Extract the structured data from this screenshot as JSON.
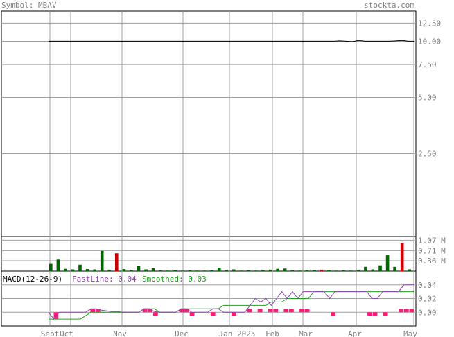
{
  "header": {
    "symbol_label": "Symbol: MBAV",
    "site": "stockta.com"
  },
  "colors": {
    "grid": "#a0a0a0",
    "axis_text": "#808080",
    "price_line": "#000000",
    "volume_up": "#006400",
    "volume_down": "#cc0000",
    "macd_fast": "#8e44ad",
    "macd_smoothed": "#22a022",
    "histogram": "#ff1a75"
  },
  "x_axis": {
    "labels": [
      "Sept",
      "Oct",
      "Nov",
      "Dec",
      "Jan 2025",
      "Feb",
      "Mar",
      "Apr",
      "May"
    ]
  },
  "chart_data": [
    {
      "type": "line",
      "panel": "price",
      "title": "",
      "y_scale": "log",
      "y_ticks": [
        "12.50",
        "10.00",
        "7.50",
        "5.00",
        "2.50"
      ],
      "y_tick_values": [
        12.5,
        10.0,
        7.5,
        5.0,
        2.5
      ],
      "ylim": [
        0.9,
        14.5
      ],
      "series": [
        {
          "values": [
            10.0,
            10.0,
            10.0,
            10.0,
            10.0,
            10.0,
            10.0,
            10.0,
            10.0,
            10.0,
            10.0,
            10.0,
            10.0,
            10.0,
            10.0,
            10.0,
            10.0,
            10.0,
            10.0,
            10.0,
            10.0,
            10.0,
            10.0,
            10.0,
            10.0,
            10.0,
            10.0,
            10.0,
            10.0,
            10.0,
            10.0,
            10.0,
            10.0,
            10.0,
            10.0,
            10.0,
            10.0,
            10.0,
            10.0,
            10.0,
            10.0,
            10.0,
            10.0,
            10.0,
            10.0,
            10.0,
            10.0,
            10.05,
            10.0,
            9.95,
            10.1,
            10.0,
            10.0,
            10.0,
            10.0,
            10.0,
            10.05,
            10.1,
            10.0,
            10.0
          ]
        }
      ]
    },
    {
      "type": "bar",
      "panel": "volume",
      "y_ticks": [
        "1.07 M",
        "0.71 M",
        "0.36 M"
      ],
      "y_tick_values": [
        1.07,
        0.71,
        0.36
      ],
      "ylim": [
        0,
        1.2
      ],
      "unit": "M",
      "bars": [
        {
          "v": 0.25,
          "c": "up"
        },
        {
          "v": 0.4,
          "c": "up"
        },
        {
          "v": 0.08,
          "c": "up"
        },
        {
          "v": 0.06,
          "c": "up"
        },
        {
          "v": 0.22,
          "c": "up"
        },
        {
          "v": 0.07,
          "c": "up"
        },
        {
          "v": 0.06,
          "c": "up"
        },
        {
          "v": 0.7,
          "c": "up"
        },
        {
          "v": 0.05,
          "c": "up"
        },
        {
          "v": 0.62,
          "c": "down"
        },
        {
          "v": 0.07,
          "c": "up"
        },
        {
          "v": 0.04,
          "c": "up"
        },
        {
          "v": 0.18,
          "c": "up"
        },
        {
          "v": 0.06,
          "c": "up"
        },
        {
          "v": 0.1,
          "c": "up"
        },
        {
          "v": 0.03,
          "c": "up"
        },
        {
          "v": 0.02,
          "c": "up"
        },
        {
          "v": 0.04,
          "c": "up"
        },
        {
          "v": 0.02,
          "c": "up"
        },
        {
          "v": 0.03,
          "c": "up"
        },
        {
          "v": 0.02,
          "c": "up"
        },
        {
          "v": 0.02,
          "c": "up"
        },
        {
          "v": 0.03,
          "c": "up"
        },
        {
          "v": 0.12,
          "c": "up"
        },
        {
          "v": 0.04,
          "c": "up"
        },
        {
          "v": 0.06,
          "c": "up"
        },
        {
          "v": 0.02,
          "c": "up"
        },
        {
          "v": 0.03,
          "c": "up"
        },
        {
          "v": 0.02,
          "c": "up"
        },
        {
          "v": 0.04,
          "c": "up"
        },
        {
          "v": 0.05,
          "c": "up"
        },
        {
          "v": 0.08,
          "c": "up"
        },
        {
          "v": 0.09,
          "c": "up"
        },
        {
          "v": 0.03,
          "c": "up"
        },
        {
          "v": 0.02,
          "c": "up"
        },
        {
          "v": 0.04,
          "c": "up"
        },
        {
          "v": 0.03,
          "c": "up"
        },
        {
          "v": 0.05,
          "c": "down"
        },
        {
          "v": 0.03,
          "c": "up"
        },
        {
          "v": 0.02,
          "c": "up"
        },
        {
          "v": 0.03,
          "c": "up"
        },
        {
          "v": 0.02,
          "c": "up"
        },
        {
          "v": 0.04,
          "c": "up"
        },
        {
          "v": 0.15,
          "c": "up"
        },
        {
          "v": 0.06,
          "c": "up"
        },
        {
          "v": 0.2,
          "c": "up"
        },
        {
          "v": 0.55,
          "c": "up"
        },
        {
          "v": 0.15,
          "c": "up"
        },
        {
          "v": 0.98,
          "c": "down"
        },
        {
          "v": 0.06,
          "c": "up"
        }
      ]
    },
    {
      "type": "line",
      "panel": "macd",
      "title": "MACD(12-26-9)",
      "fast_label": "FastLine: 0.04",
      "smoothed_label": "Smoothed: 0.03",
      "y_ticks": [
        "0.04",
        "0.02",
        "0.00"
      ],
      "y_tick_values": [
        0.04,
        0.02,
        0.0
      ],
      "ylim": [
        -0.02,
        0.06
      ],
      "series": [
        {
          "name": "FastLine",
          "values": [
            0.0,
            -0.01,
            0.0,
            0.0,
            0.0,
            0.0,
            0.0,
            0.0,
            0.005,
            0.005,
            0.003,
            0.002,
            0.001,
            0.001,
            0.0,
            0.0,
            0.0,
            0.0,
            0.005,
            0.005,
            0.001,
            0.0,
            0.0,
            0.0,
            0.0,
            0.005,
            0.005,
            0.0,
            0.0,
            0.0,
            0.0,
            0.005,
            0.005,
            0.0,
            0.0,
            0.0,
            0.0,
            0.0,
            0.01,
            0.02,
            0.015,
            0.02,
            0.01,
            0.02,
            0.03,
            0.02,
            0.03,
            0.02,
            0.03,
            0.03,
            0.03,
            0.03,
            0.03,
            0.02,
            0.03,
            0.03,
            0.03,
            0.03,
            0.03,
            0.03,
            0.03,
            0.02,
            0.02,
            0.03,
            0.03,
            0.03,
            0.03,
            0.04,
            0.04,
            0.04
          ]
        },
        {
          "name": "Smoothed",
          "values": [
            -0.01,
            -0.01,
            -0.01,
            -0.01,
            -0.01,
            -0.01,
            -0.01,
            -0.005,
            0.0,
            0.0,
            0.0,
            0.0,
            0.0,
            0.0,
            0.0,
            0.0,
            0.0,
            0.0,
            0.005,
            0.005,
            0.005,
            0.0,
            0.0,
            0.0,
            0.0,
            0.005,
            0.005,
            0.005,
            0.005,
            0.005,
            0.005,
            0.005,
            0.005,
            0.01,
            0.01,
            0.01,
            0.01,
            0.01,
            0.01,
            0.01,
            0.01,
            0.01,
            0.015,
            0.015,
            0.015,
            0.02,
            0.02,
            0.02,
            0.02,
            0.02,
            0.03,
            0.03,
            0.03,
            0.03,
            0.03,
            0.03,
            0.03,
            0.03,
            0.03,
            0.03,
            0.03,
            0.03,
            0.03,
            0.03,
            0.03,
            0.03,
            0.03,
            0.03,
            0.03,
            0.03
          ]
        }
      ],
      "histogram": [
        0.0,
        -0.01,
        0.0,
        0.0,
        0.0,
        0.0,
        0.0,
        0.0,
        0.005,
        0.005,
        0.0,
        0.0,
        0.0,
        0.0,
        0.0,
        0.0,
        0.0,
        0.0,
        0.005,
        0.005,
        -0.005,
        0.0,
        0.0,
        0.0,
        0.0,
        0.005,
        0.005,
        -0.005,
        0.0,
        0.0,
        0.0,
        -0.005,
        0.0,
        0.0,
        0.0,
        -0.005,
        0.0,
        0.0,
        0.005,
        0.0,
        0.005,
        0.0,
        0.005,
        0.005,
        0.0,
        0.005,
        0.005,
        0.0,
        0.005,
        0.005,
        0.0,
        0.0,
        0.0,
        0.0,
        -0.005,
        0.0,
        0.0,
        0.0,
        0.0,
        0.0,
        0.0,
        -0.005,
        -0.005,
        0.0,
        -0.005,
        0.0,
        0.0,
        0.005,
        0.005,
        0.005
      ]
    }
  ]
}
